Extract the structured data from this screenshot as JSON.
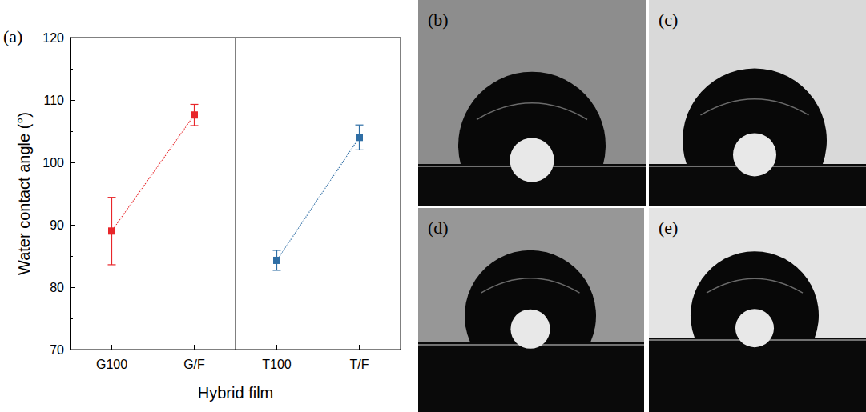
{
  "chart_data": {
    "type": "line",
    "panel_label": "(a)",
    "x_label": "Hybrid film",
    "y_label": "Water contact angle (°)",
    "categories": [
      "G100",
      "G/F",
      "T100",
      "T/F"
    ],
    "series": [
      {
        "color": "#e8262a",
        "marker": "square",
        "line_style": "dotted",
        "values": [
          89.0,
          107.6,
          null,
          null
        ],
        "errors": [
          5.4,
          1.7,
          null,
          null
        ]
      },
      {
        "color": "#2f6ea5",
        "marker": "square",
        "line_style": "dotted",
        "values": [
          null,
          null,
          84.3,
          104.0
        ],
        "errors": [
          null,
          null,
          1.6,
          2.0
        ]
      }
    ],
    "ylim": [
      70,
      120
    ],
    "yticks": [
      70,
      80,
      90,
      100,
      110,
      120
    ]
  },
  "photos": [
    {
      "label": "(b)"
    },
    {
      "label": "(c)"
    },
    {
      "label": "(d)"
    },
    {
      "label": "(e)"
    }
  ]
}
